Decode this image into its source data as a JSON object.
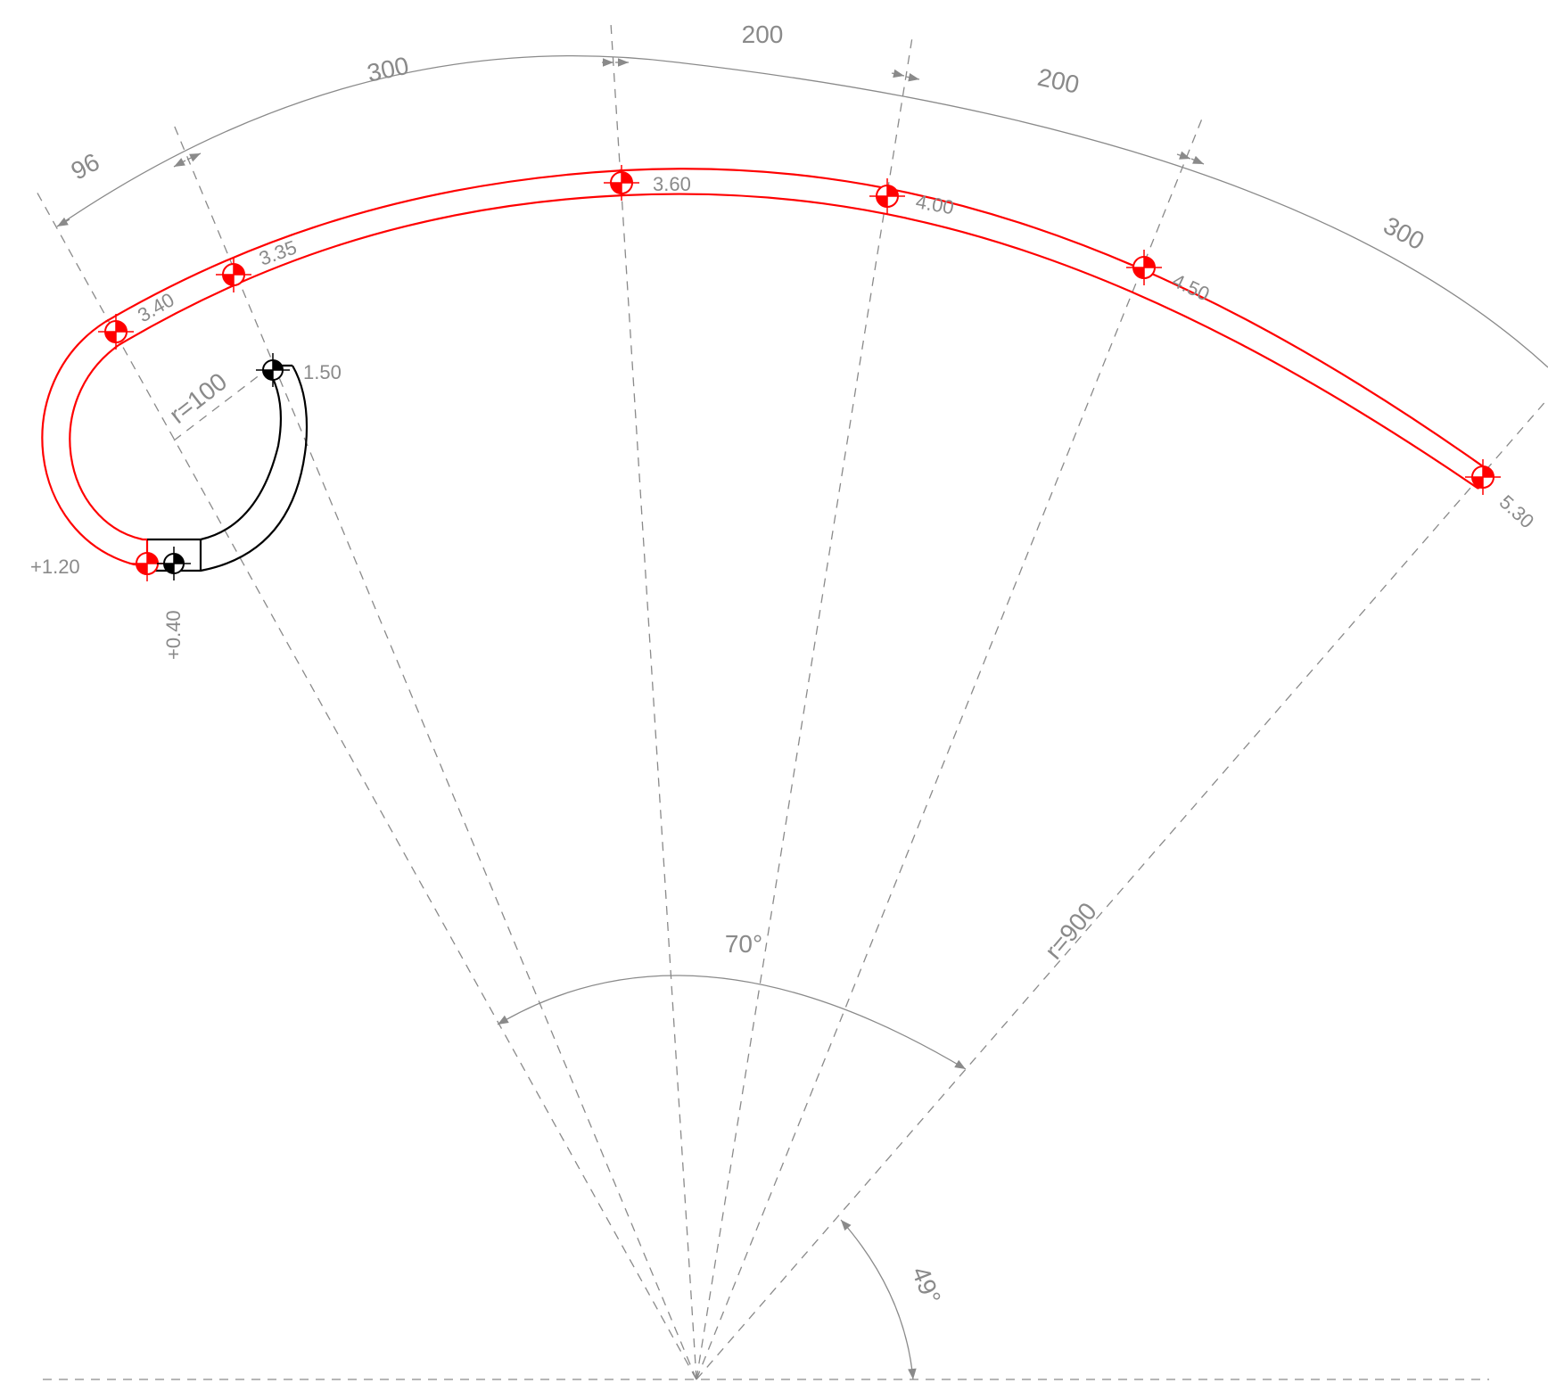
{
  "colors": {
    "path": "#ff0000",
    "landing": "#000000",
    "dimension": "#8a8a8a",
    "construction": "#8a8a8a",
    "background": "#ffffff"
  },
  "segment_dimensions": [
    "96",
    "300",
    "200",
    "200",
    "300"
  ],
  "radii": {
    "inner": "r=100",
    "outer": "r=900"
  },
  "angles": {
    "sweep": "70°",
    "start": "49°"
  },
  "elevations": {
    "e_120": "+1.20",
    "e_040": "+0.40",
    "e_150": "1.50",
    "e_340": "3.40",
    "e_335": "3.35",
    "e_360": "3.60",
    "e_400": "4.00",
    "e_450": "4.50",
    "e_530": "5.30"
  },
  "icons": {
    "elevation_marker": "elevation-marker-icon"
  }
}
